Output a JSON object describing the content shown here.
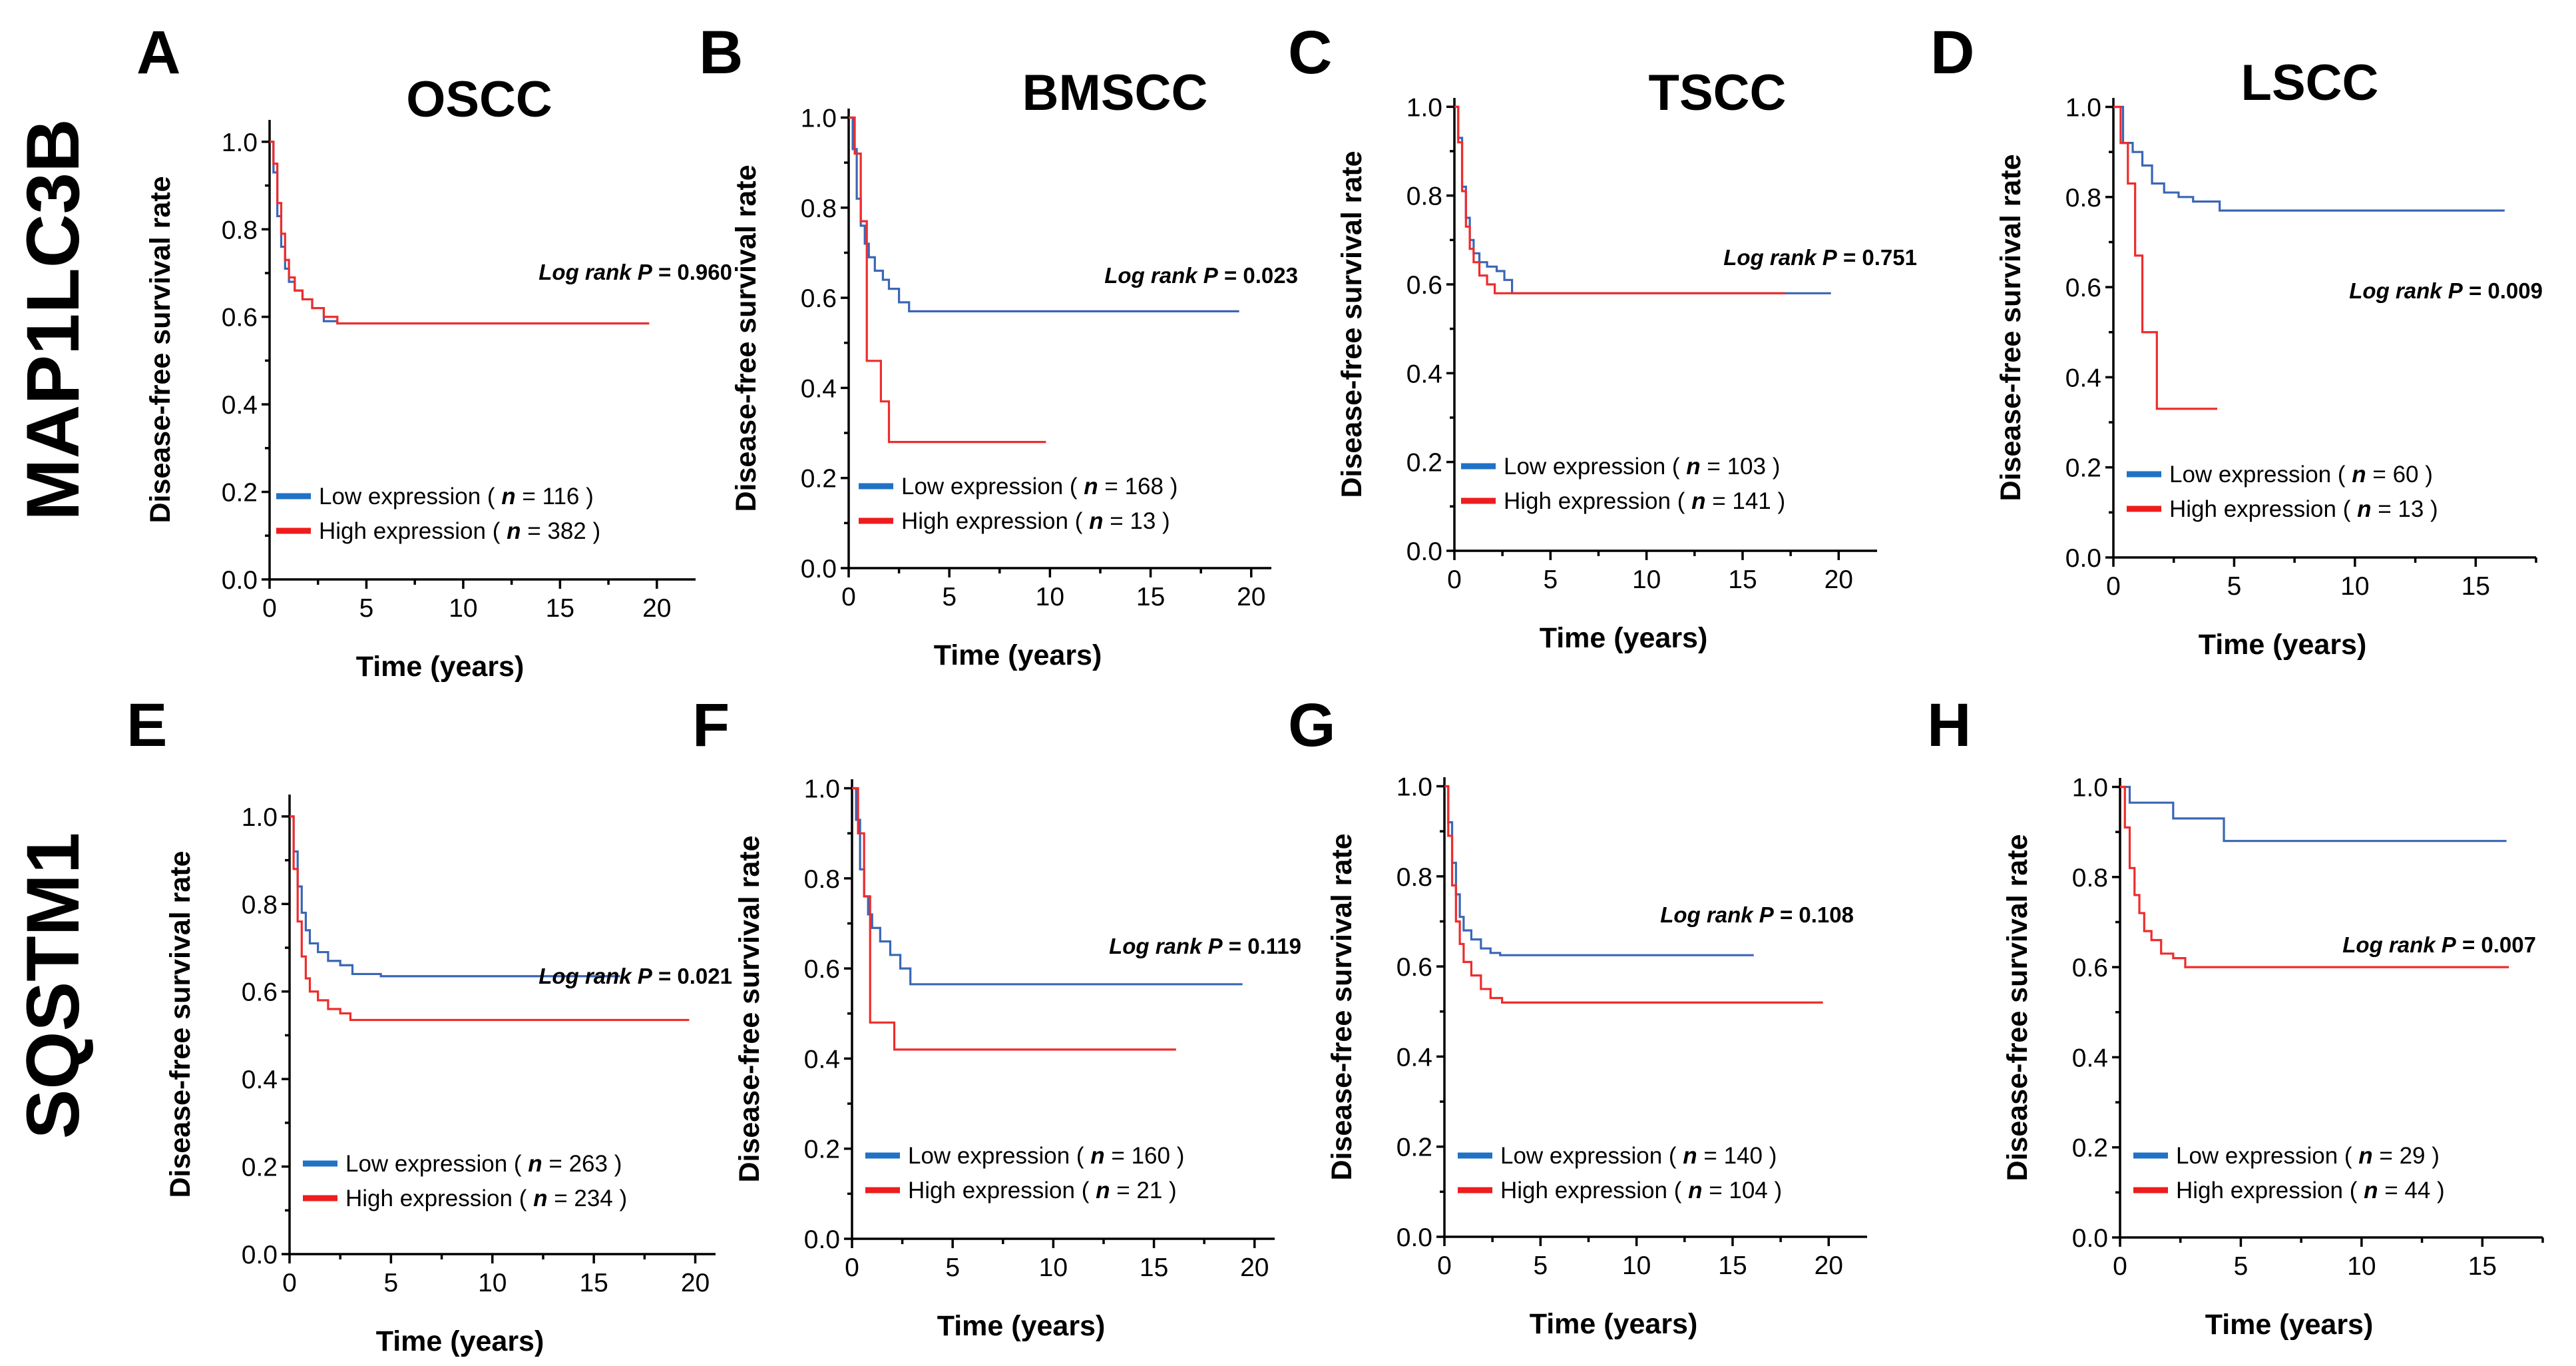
{
  "colors": {
    "low": "#3a66b5",
    "high": "#ee2c2c",
    "legend_low": "#1f72c6",
    "legend_high": "#ee1c1c"
  },
  "row_labels": [
    "MAP1LC3B",
    "SQSTM1"
  ],
  "chart_data": [
    {
      "type": "line",
      "letter": "A",
      "title": "OSCC",
      "xlabel": "Time (years)",
      "ylabel": "Disease-free survival rate",
      "xlim": [
        0,
        22
      ],
      "ylim": [
        0,
        1.05
      ],
      "xticks": [
        "0",
        "5",
        "10",
        "15",
        "20"
      ],
      "yticks": [
        "0.0",
        "0.2",
        "0.4",
        "0.6",
        "0.8",
        "1.0"
      ],
      "logrank": {
        "prefix": "Log rank ",
        "p": "P",
        "value": " = 0.960"
      },
      "series": [
        {
          "name": "Low expression",
          "label": "Low expression ( ",
          "n_label": "n",
          "n_value": " = 116 )",
          "x": [
            0,
            0.2,
            0.4,
            0.6,
            0.8,
            1.0,
            1.3,
            1.7,
            2.2,
            2.8,
            3.5,
            19.6
          ],
          "y": [
            1.0,
            0.93,
            0.83,
            0.76,
            0.71,
            0.68,
            0.66,
            0.64,
            0.62,
            0.59,
            0.585,
            0.585
          ]
        },
        {
          "name": "High expression",
          "label": "High expression ( ",
          "n_label": "n",
          "n_value": " = 382 )",
          "x": [
            0,
            0.2,
            0.4,
            0.6,
            0.8,
            1.0,
            1.3,
            1.7,
            2.2,
            2.8,
            3.5,
            19.6
          ],
          "y": [
            1.0,
            0.95,
            0.86,
            0.79,
            0.73,
            0.69,
            0.66,
            0.64,
            0.62,
            0.6,
            0.585,
            0.585
          ]
        }
      ]
    },
    {
      "type": "line",
      "letter": "B",
      "title": "BMSCC",
      "xlabel": "Time (years)",
      "ylabel": "Disease-free survival rate",
      "xlim": [
        0,
        21
      ],
      "ylim": [
        0,
        1.02
      ],
      "xticks": [
        "0",
        "5",
        "10",
        "15",
        "20"
      ],
      "yticks": [
        "0.0",
        "0.2",
        "0.4",
        "0.6",
        "0.8",
        "1.0"
      ],
      "logrank": {
        "prefix": "Log rank ",
        "p": "P",
        "value": " = 0.023"
      },
      "series": [
        {
          "name": "Low expression",
          "label": "Low expression ( ",
          "n_label": "n",
          "n_value": " = 168 )",
          "x": [
            0,
            0.2,
            0.4,
            0.6,
            0.8,
            1.0,
            1.3,
            1.7,
            2.0,
            2.5,
            3.0,
            19.4
          ],
          "y": [
            1.0,
            0.93,
            0.82,
            0.76,
            0.72,
            0.69,
            0.66,
            0.64,
            0.62,
            0.59,
            0.57,
            0.57
          ]
        },
        {
          "name": "High expression",
          "label": "High expression ( ",
          "n_label": "n",
          "n_value": " = 13 )",
          "x": [
            0,
            0.3,
            0.6,
            0.9,
            1.2,
            1.6,
            2.0,
            9.8
          ],
          "y": [
            1.0,
            0.92,
            0.77,
            0.46,
            0.46,
            0.37,
            0.28,
            0.28
          ]
        }
      ]
    },
    {
      "type": "line",
      "letter": "C",
      "title": "TSCC",
      "xlabel": "Time (years)",
      "ylabel": "Disease-free survival rate",
      "xlim": [
        0,
        22
      ],
      "ylim": [
        0,
        1.02
      ],
      "xticks": [
        "0",
        "5",
        "10",
        "15",
        "20"
      ],
      "yticks": [
        "0.0",
        "0.2",
        "0.4",
        "0.6",
        "0.8",
        "1.0"
      ],
      "logrank": {
        "prefix": "Log rank ",
        "p": "P",
        "value": " = 0.751"
      },
      "series": [
        {
          "name": "Low expression",
          "label": "Low expression ( ",
          "n_label": "n",
          "n_value": " = 103 )",
          "x": [
            0,
            0.2,
            0.4,
            0.6,
            0.8,
            1.0,
            1.3,
            1.7,
            2.2,
            2.6,
            3.0,
            19.6
          ],
          "y": [
            1.0,
            0.93,
            0.82,
            0.75,
            0.7,
            0.67,
            0.65,
            0.64,
            0.63,
            0.61,
            0.58,
            0.58
          ]
        },
        {
          "name": "High expression",
          "label": "High expression ( ",
          "n_label": "n",
          "n_value": " = 141 )",
          "x": [
            0,
            0.2,
            0.4,
            0.6,
            0.8,
            1.0,
            1.3,
            1.7,
            2.1,
            17.2
          ],
          "y": [
            1.0,
            0.92,
            0.81,
            0.73,
            0.68,
            0.65,
            0.62,
            0.6,
            0.58,
            0.58
          ]
        }
      ]
    },
    {
      "type": "line",
      "letter": "D",
      "title": "LSCC",
      "xlabel": "Time (years)",
      "ylabel": "Disease-free survival rate",
      "xlim": [
        0,
        17.5
      ],
      "ylim": [
        0,
        1.02
      ],
      "xticks": [
        "0",
        "5",
        "10",
        "15"
      ],
      "yticks": [
        "0.0",
        "0.2",
        "0.4",
        "0.6",
        "0.8",
        "1.0"
      ],
      "logrank": {
        "prefix": "Log rank ",
        "p": "P",
        "value": " = 0.009"
      },
      "series": [
        {
          "name": "Low expression",
          "label": "Low expression ( ",
          "n_label": "n",
          "n_value": " = 60 )",
          "x": [
            0,
            0.4,
            0.8,
            1.2,
            1.6,
            2.1,
            2.7,
            3.3,
            4.4,
            16.2
          ],
          "y": [
            1.0,
            0.92,
            0.9,
            0.87,
            0.83,
            0.81,
            0.8,
            0.79,
            0.77,
            0.77
          ]
        },
        {
          "name": "High expression",
          "label": "High expression ( ",
          "n_label": "n",
          "n_value": " = 13 )",
          "x": [
            0,
            0.3,
            0.6,
            0.9,
            1.2,
            1.8,
            4.3
          ],
          "y": [
            1.0,
            0.92,
            0.83,
            0.67,
            0.5,
            0.33,
            0.33
          ]
        }
      ]
    },
    {
      "type": "line",
      "letter": "E",
      "title": "",
      "xlabel": "Time (years)",
      "ylabel": "Disease-free survival rate",
      "xlim": [
        0,
        21
      ],
      "ylim": [
        0,
        1.05
      ],
      "xticks": [
        "0",
        "5",
        "10",
        "15",
        "20"
      ],
      "yticks": [
        "0.0",
        "0.2",
        "0.4",
        "0.6",
        "0.8",
        "1.0"
      ],
      "logrank": {
        "prefix": "Log rank ",
        "p": "P",
        "value": " = 0.021"
      },
      "series": [
        {
          "name": "Low expression",
          "label": "Low expression ( ",
          "n_label": "n",
          "n_value": " = 263 )",
          "x": [
            0,
            0.2,
            0.4,
            0.6,
            0.8,
            1.0,
            1.4,
            1.9,
            2.5,
            3.1,
            4.5,
            16.3
          ],
          "y": [
            1.0,
            0.92,
            0.84,
            0.78,
            0.74,
            0.71,
            0.69,
            0.67,
            0.66,
            0.64,
            0.635,
            0.635
          ]
        },
        {
          "name": "High expression",
          "label": "High expression ( ",
          "n_label": "n",
          "n_value": " = 234 )",
          "x": [
            0,
            0.2,
            0.4,
            0.6,
            0.8,
            1.0,
            1.4,
            1.9,
            2.5,
            3.0,
            19.7
          ],
          "y": [
            1.0,
            0.88,
            0.76,
            0.68,
            0.63,
            0.6,
            0.58,
            0.56,
            0.55,
            0.535,
            0.535
          ]
        }
      ]
    },
    {
      "type": "line",
      "letter": "F",
      "title": "",
      "xlabel": "Time (years)",
      "ylabel": "Disease-free survival rate",
      "xlim": [
        0,
        21
      ],
      "ylim": [
        0,
        1.02
      ],
      "xticks": [
        "0",
        "5",
        "10",
        "15",
        "20"
      ],
      "yticks": [
        "0.0",
        "0.2",
        "0.4",
        "0.6",
        "0.8",
        "1.0"
      ],
      "logrank": {
        "prefix": "Log rank ",
        "p": "P",
        "value": " = 0.119"
      },
      "series": [
        {
          "name": "Low expression",
          "label": "Low expression ( ",
          "n_label": "n",
          "n_value": " = 160 )",
          "x": [
            0,
            0.2,
            0.4,
            0.6,
            0.8,
            1.0,
            1.4,
            1.9,
            2.4,
            2.9,
            19.4
          ],
          "y": [
            1.0,
            0.93,
            0.82,
            0.76,
            0.72,
            0.69,
            0.66,
            0.63,
            0.6,
            0.565,
            0.565
          ]
        },
        {
          "name": "High expression",
          "label": "High expression ( ",
          "n_label": "n",
          "n_value": " = 21 )",
          "x": [
            0,
            0.3,
            0.6,
            0.9,
            2.1,
            16.1
          ],
          "y": [
            1.0,
            0.9,
            0.76,
            0.48,
            0.42,
            0.42
          ]
        }
      ]
    },
    {
      "type": "line",
      "letter": "G",
      "title": "",
      "xlabel": "Time (years)",
      "ylabel": "Disease-free survival rate",
      "xlim": [
        0,
        22
      ],
      "ylim": [
        0,
        1.02
      ],
      "xticks": [
        "0",
        "5",
        "10",
        "15",
        "20"
      ],
      "yticks": [
        "0.0",
        "0.2",
        "0.4",
        "0.6",
        "0.8",
        "1.0"
      ],
      "logrank": {
        "prefix": "Log rank ",
        "p": "P",
        "value": " = 0.108"
      },
      "series": [
        {
          "name": "Low expression",
          "label": "Low expression ( ",
          "n_label": "n",
          "n_value": " = 140 )",
          "x": [
            0,
            0.2,
            0.4,
            0.6,
            0.8,
            1.0,
            1.4,
            1.9,
            2.4,
            2.9,
            16.1
          ],
          "y": [
            1.0,
            0.92,
            0.83,
            0.76,
            0.71,
            0.68,
            0.66,
            0.64,
            0.63,
            0.625,
            0.625
          ]
        },
        {
          "name": "High expression",
          "label": "High expression ( ",
          "n_label": "n",
          "n_value": " = 104 )",
          "x": [
            0,
            0.2,
            0.4,
            0.6,
            0.8,
            1.0,
            1.4,
            1.9,
            2.4,
            3.0,
            19.7
          ],
          "y": [
            1.0,
            0.89,
            0.78,
            0.7,
            0.65,
            0.61,
            0.58,
            0.55,
            0.53,
            0.52,
            0.52
          ]
        }
      ]
    },
    {
      "type": "line",
      "letter": "H",
      "title": "",
      "xlabel": "Time (years)",
      "ylabel": "Disease-free survival rate",
      "xlim": [
        0,
        17.5
      ],
      "ylim": [
        0,
        1.02
      ],
      "xticks": [
        "0",
        "5",
        "10",
        "15"
      ],
      "yticks": [
        "0.0",
        "0.2",
        "0.4",
        "0.6",
        "0.8",
        "1.0"
      ],
      "logrank": {
        "prefix": "Log rank ",
        "p": "P",
        "value": " = 0.007"
      },
      "series": [
        {
          "name": "Low expression",
          "label": "Low expression ( ",
          "n_label": "n",
          "n_value": " = 29 )",
          "x": [
            0,
            0.4,
            2.2,
            4.3,
            16.0
          ],
          "y": [
            1.0,
            0.965,
            0.93,
            0.88,
            0.88
          ]
        },
        {
          "name": "High expression",
          "label": "High expression ( ",
          "n_label": "n",
          "n_value": " = 44 )",
          "x": [
            0,
            0.2,
            0.4,
            0.6,
            0.8,
            1.0,
            1.3,
            1.7,
            2.2,
            2.7,
            16.1
          ],
          "y": [
            1.0,
            0.91,
            0.82,
            0.76,
            0.72,
            0.68,
            0.66,
            0.63,
            0.62,
            0.6,
            0.6
          ]
        }
      ]
    }
  ]
}
